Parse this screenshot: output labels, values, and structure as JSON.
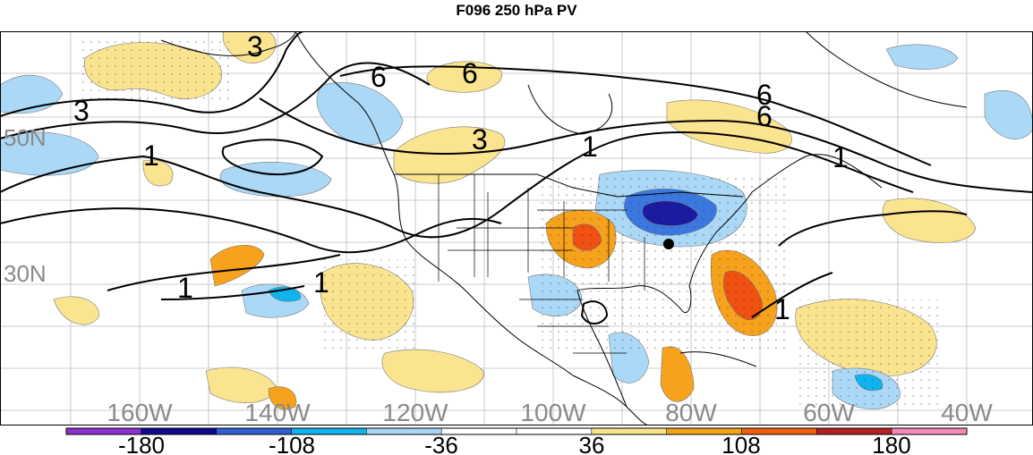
{
  "title": "F096 250 hPa PV",
  "lon_labels": [
    "160W",
    "140W",
    "120W",
    "100W",
    "80W",
    "60W",
    "40W"
  ],
  "lat_labels": [
    "50N",
    "30N"
  ],
  "contour_labels": [
    "3",
    "3",
    "6",
    "6",
    "3",
    "6",
    "6",
    "1",
    "1",
    "1",
    "1",
    "1",
    "1"
  ],
  "colorbar": {
    "labels": [
      "-180",
      "-108",
      "-36",
      "36",
      "108",
      "180"
    ],
    "colors": [
      "#8e2fd0",
      "#0a0a8c",
      "#2f5fd6",
      "#0fb4ee",
      "#a8d8f5",
      "#ffffff",
      "#ffffff",
      "#fae48c",
      "#f5a418",
      "#f25f0c",
      "#b62020",
      "#f58ab8"
    ]
  },
  "colors": {
    "neg_strong": "#1a1aa0",
    "neg_mid": "#3a78e0",
    "neg_light": "#aad8f6",
    "pos_light": "#fae490",
    "pos_mid": "#f7a21c",
    "pos_strong": "#f05010"
  }
}
